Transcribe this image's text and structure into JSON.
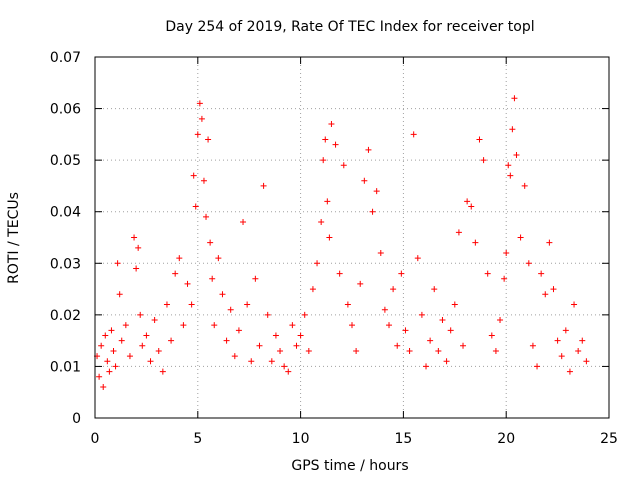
{
  "chart_data": {
    "type": "scatter",
    "title": "Day 254 of 2019, Rate Of TEC Index for receiver topl",
    "xlabel": "GPS time / hours",
    "ylabel": "ROTI / TECUs",
    "xlim": [
      0,
      25
    ],
    "ylim": [
      0,
      0.07
    ],
    "x_ticks": [
      0,
      5,
      10,
      15,
      20,
      25
    ],
    "y_ticks": [
      0,
      0.01,
      0.02,
      0.03,
      0.04,
      0.05,
      0.06,
      0.07
    ],
    "x_tick_labels": [
      "0",
      "5",
      "10",
      "15",
      "20",
      "25"
    ],
    "y_tick_labels": [
      "0",
      "0.01",
      "0.02",
      "0.03",
      "0.04",
      "0.05",
      "0.06",
      "0.07"
    ],
    "grid": true,
    "marker": "plus",
    "color": "#ff0000",
    "series": [
      {
        "name": "ROTI",
        "x": [
          0.1,
          0.2,
          0.3,
          0.4,
          0.5,
          0.6,
          0.7,
          0.8,
          0.9,
          1.0,
          1.1,
          1.2,
          1.3,
          1.5,
          1.7,
          1.9,
          2.0,
          2.1,
          2.2,
          2.3,
          2.5,
          2.7,
          2.9,
          3.1,
          3.3,
          3.5,
          3.7,
          3.9,
          4.1,
          4.3,
          4.5,
          4.7,
          4.8,
          4.9,
          5.0,
          5.1,
          5.2,
          5.3,
          5.4,
          5.5,
          5.6,
          5.7,
          5.8,
          6.0,
          6.2,
          6.4,
          6.6,
          6.8,
          7.0,
          7.2,
          7.4,
          7.6,
          7.8,
          8.0,
          8.2,
          8.4,
          8.6,
          8.8,
          9.0,
          9.2,
          9.4,
          9.6,
          9.8,
          10.0,
          10.2,
          10.4,
          10.6,
          10.8,
          11.0,
          11.1,
          11.2,
          11.3,
          11.4,
          11.5,
          11.7,
          11.9,
          12.1,
          12.3,
          12.5,
          12.7,
          12.9,
          13.1,
          13.3,
          13.5,
          13.7,
          13.9,
          14.1,
          14.3,
          14.5,
          14.7,
          14.9,
          15.1,
          15.3,
          15.5,
          15.7,
          15.9,
          16.1,
          16.3,
          16.5,
          16.7,
          16.9,
          17.1,
          17.3,
          17.5,
          17.7,
          17.9,
          18.1,
          18.3,
          18.5,
          18.7,
          18.9,
          19.1,
          19.3,
          19.5,
          19.7,
          19.9,
          20.0,
          20.1,
          20.2,
          20.3,
          20.4,
          20.5,
          20.7,
          20.9,
          21.1,
          21.3,
          21.5,
          21.7,
          21.9,
          22.1,
          22.3,
          22.5,
          22.7,
          22.9,
          23.1,
          23.3,
          23.5,
          23.7,
          23.9
        ],
        "y": [
          0.012,
          0.008,
          0.014,
          0.006,
          0.016,
          0.011,
          0.009,
          0.017,
          0.013,
          0.01,
          0.03,
          0.024,
          0.015,
          0.018,
          0.012,
          0.035,
          0.029,
          0.033,
          0.02,
          0.014,
          0.016,
          0.011,
          0.019,
          0.013,
          0.009,
          0.022,
          0.015,
          0.028,
          0.031,
          0.018,
          0.026,
          0.022,
          0.047,
          0.041,
          0.055,
          0.061,
          0.058,
          0.046,
          0.039,
          0.054,
          0.034,
          0.027,
          0.018,
          0.031,
          0.024,
          0.015,
          0.021,
          0.012,
          0.017,
          0.038,
          0.022,
          0.011,
          0.027,
          0.014,
          0.045,
          0.02,
          0.011,
          0.016,
          0.013,
          0.01,
          0.009,
          0.018,
          0.014,
          0.016,
          0.02,
          0.013,
          0.025,
          0.03,
          0.038,
          0.05,
          0.054,
          0.042,
          0.035,
          0.057,
          0.053,
          0.028,
          0.049,
          0.022,
          0.018,
          0.013,
          0.026,
          0.046,
          0.052,
          0.04,
          0.044,
          0.032,
          0.021,
          0.018,
          0.025,
          0.014,
          0.028,
          0.017,
          0.013,
          0.055,
          0.031,
          0.02,
          0.01,
          0.015,
          0.025,
          0.013,
          0.019,
          0.011,
          0.017,
          0.022,
          0.036,
          0.014,
          0.042,
          0.041,
          0.034,
          0.054,
          0.05,
          0.028,
          0.016,
          0.013,
          0.019,
          0.027,
          0.032,
          0.049,
          0.047,
          0.056,
          0.062,
          0.051,
          0.035,
          0.045,
          0.03,
          0.014,
          0.01,
          0.028,
          0.024,
          0.034,
          0.025,
          0.015,
          0.012,
          0.017,
          0.009,
          0.022,
          0.013,
          0.015,
          0.011
        ]
      }
    ]
  }
}
